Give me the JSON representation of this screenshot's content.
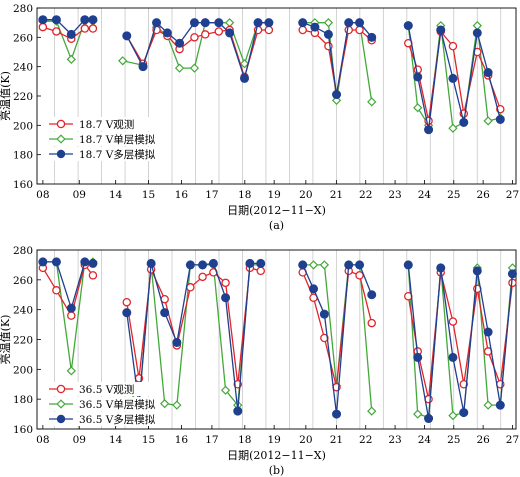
{
  "chart_data": [
    {
      "type": "line",
      "panel_label": "(a)",
      "xlabel": "日期(2012−11−X)",
      "ylabel": "亮温值(K)",
      "ylim": [
        160,
        280
      ],
      "yticks": [
        160,
        180,
        200,
        220,
        240,
        260,
        280
      ],
      "xtick_labels": [
        "08",
        "09",
        "14",
        "15",
        "16",
        "17",
        "18",
        "19",
        "20",
        "21",
        "22",
        "23",
        "24",
        "25",
        "26",
        "27"
      ],
      "xlim": [
        0,
        30
      ],
      "xtick_positions": [
        0,
        3,
        5,
        7,
        9,
        11,
        13,
        15,
        17,
        19,
        21,
        23,
        25,
        27,
        29,
        30
      ],
      "vertical_gridlines": [
        1,
        2,
        3,
        5,
        6,
        7,
        8,
        9,
        10,
        11,
        12,
        13,
        14,
        15,
        16,
        17,
        18,
        19,
        20,
        21,
        22,
        23,
        24,
        25,
        26,
        27,
        28,
        29
      ],
      "legend_position": "lower-left",
      "series": [
        {
          "name": "18.7 V观测",
          "color": "#e02020",
          "marker": "open-circle",
          "segments": [
            {
              "x": [
                0.25,
                1.25,
                2.15,
                3.0,
                3.5
              ],
              "y": [
                266,
                263,
                259,
                266,
                266
              ]
            },
            {
              "x": [
                5,
                6.1,
                7.0,
                7.6,
                8.5,
                9.5,
                10.5,
                11.4
              ],
              "y": [
                261,
                241,
                264,
                252,
                260,
                262,
                264,
                234
              ]
            },
            {
              "x": [
                13.0,
                14.1,
                14.8,
                15.6,
                16.3,
                17.0,
                17.8,
                18.5
              ],
              "y": [
                265,
                262,
                255,
                207,
                264,
                264,
                258,
                256
              ]
            },
            {
              "x": [
                20.5,
                21.2,
                21.9,
                22.5,
                23.4,
                24.2,
                25.2,
                25.5
              ],
              "y": [
                237,
                203,
                264,
                254,
                207,
                251,
                234,
                211
              ]
            },
            {
              "x": [
                26.0,
                27.0,
                28.0,
                29.0,
                30.0
              ],
              "y": [
                258,
                251,
                236,
                210,
                262
              ]
            }
          ]
        }
      ],
      "series_all": [
        {
          "name": "18.7 V观测",
          "color": "#e02020",
          "marker": "open-circle",
          "points": [
            [
              0.3,
              267
            ],
            [
              1.3,
              263
            ],
            [
              2.2,
              258
            ],
            [
              3.0,
              266
            ],
            [
              3.6,
              266
            ],
            [
              5.0,
              262
            ],
            [
              6.0,
              240
            ],
            [
              6.7,
              263
            ],
            [
              7.4,
              251
            ],
            [
              8.0,
              259
            ],
            [
              8.6,
              262
            ],
            [
              9.3,
              264
            ],
            [
              10.0,
              265
            ],
            [
              10.6,
              233
            ],
            [
              11.3,
              265
            ],
            [
              11.9,
              265
            ],
            [
              13.4,
              265
            ],
            [
              14.2,
              261
            ],
            [
              15.0,
              253
            ],
            [
              15.7,
              205
            ],
            [
              16.3,
              264
            ],
            [
              17.0,
              264
            ],
            [
              17.7,
              257
            ],
            [
              19.0,
              255
            ],
            [
              19.6,
              238
            ],
            [
              20.2,
              201
            ],
            [
              20.8,
              264
            ],
            [
              21.4,
              253
            ],
            [
              22.0,
              206
            ],
            [
              22.7,
              251
            ],
            [
              23.5,
              234
            ],
            [
              24.2,
              208
            ]
          ]
        }
      ]
    }
  ]
}
